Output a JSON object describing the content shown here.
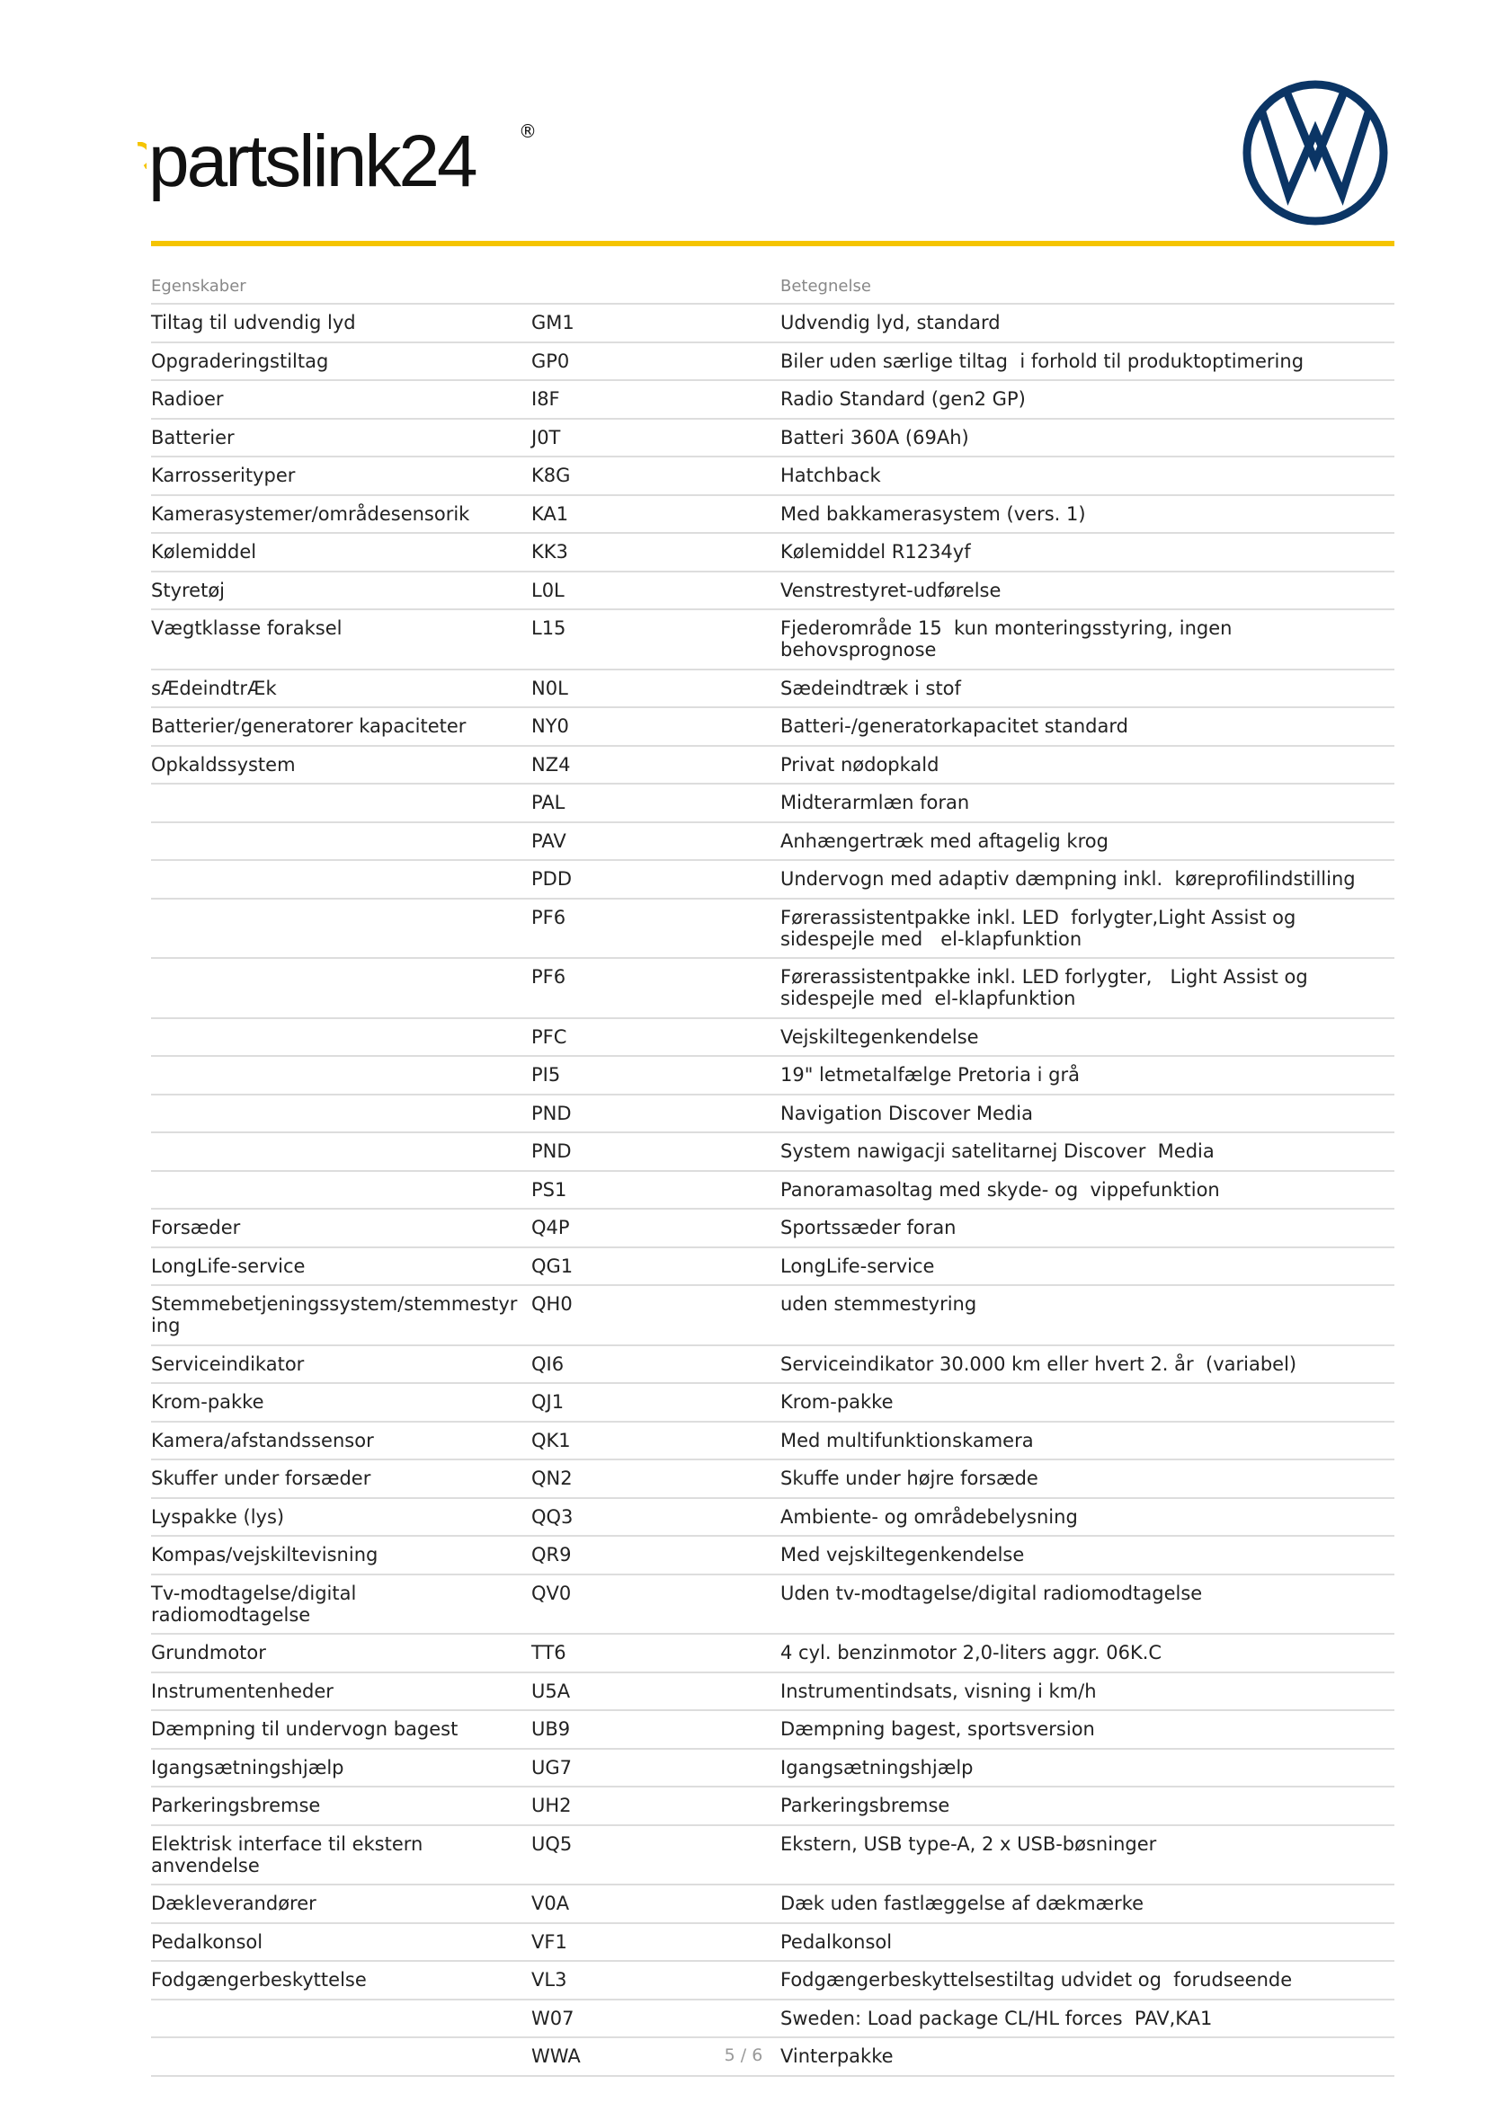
{
  "header": {
    "logo_text": "partslink24",
    "logo_registered": "®",
    "brand_logo": "vw-logo-icon",
    "accent_color": "#f5c400",
    "brand_color": "#0b3565"
  },
  "table": {
    "columns": [
      "Egenskaber",
      "",
      "Betegnelse"
    ],
    "rows": [
      [
        "Tiltag til udvendig lyd",
        "GM1",
        "Udvendig lyd, standard"
      ],
      [
        "Opgraderingstiltag",
        "GP0",
        "Biler uden særlige tiltag  i forhold til produktoptimering"
      ],
      [
        "Radioer",
        "I8F",
        "Radio Standard (gen2 GP)"
      ],
      [
        "Batterier",
        "J0T",
        "Batteri 360A (69Ah)"
      ],
      [
        "Karrosserityper",
        "K8G",
        "Hatchback"
      ],
      [
        "Kamerasystemer/områdesensorik",
        "KA1",
        "Med bakkamerasystem (vers. 1)"
      ],
      [
        "Kølemiddel",
        "KK3",
        "Kølemiddel R1234yf"
      ],
      [
        "Styretøj",
        "L0L",
        "Venstrestyret-udførelse"
      ],
      [
        "Vægtklasse foraksel",
        "L15",
        "Fjederområde 15  kun monteringsstyring, ingen behovsprognose"
      ],
      [
        "sÆdeindtrÆk",
        "N0L",
        "Sædeindtræk i stof"
      ],
      [
        "Batterier/generatorer kapaciteter",
        "NY0",
        "Batteri-/generatorkapacitet standard"
      ],
      [
        "Opkaldssystem",
        "NZ4",
        "Privat nødopkald"
      ],
      [
        "",
        "PAL",
        "Midterarmlæn foran"
      ],
      [
        "",
        "PAV",
        "Anhængertræk med aftagelig krog"
      ],
      [
        "",
        "PDD",
        "Undervogn med adaptiv dæmpning inkl.  køreprofilindstilling"
      ],
      [
        "",
        "PF6",
        "Førerassistentpakke inkl. LED  forlygter,Light Assist og sidespejle med   el-klapfunktion"
      ],
      [
        "",
        "PF6",
        "Førerassistentpakke inkl. LED forlygter,   Light Assist og sidespejle med  el-klapfunktion"
      ],
      [
        "",
        "PFC",
        "Vejskiltegenkendelse"
      ],
      [
        "",
        "PI5",
        "19\" letmetalfælge Pretoria i grå"
      ],
      [
        "",
        "PND",
        "Navigation Discover Media"
      ],
      [
        "",
        "PND",
        "System nawigacji satelitarnej Discover  Media"
      ],
      [
        "",
        "PS1",
        "Panoramasoltag med skyde- og  vippefunktion"
      ],
      [
        "Forsæder",
        "Q4P",
        "Sportssæder foran"
      ],
      [
        "LongLife-service",
        "QG1",
        "LongLife-service"
      ],
      [
        "Stemmebetjeningssystem/stemmestyring",
        "QH0",
        "uden stemmestyring"
      ],
      [
        "Serviceindikator",
        "QI6",
        "Serviceindikator 30.000 km eller hvert 2. år  (variabel)"
      ],
      [
        "Krom-pakke",
        "QJ1",
        "Krom-pakke"
      ],
      [
        "Kamera/afstandssensor",
        "QK1",
        "Med multifunktionskamera"
      ],
      [
        "Skuffer under forsæder",
        "QN2",
        "Skuffe under højre forsæde"
      ],
      [
        "Lyspakke (lys)",
        "QQ3",
        "Ambiente- og områdebelysning"
      ],
      [
        "Kompas/vejskiltevisning",
        "QR9",
        "Med vejskiltegenkendelse"
      ],
      [
        "Tv-modtagelse/digital radiomodtagelse",
        "QV0",
        "Uden tv-modtagelse/digital radiomodtagelse"
      ],
      [
        "Grundmotor",
        "TT6",
        "4 cyl. benzinmotor 2,0-liters aggr. 06K.C"
      ],
      [
        "Instrumentenheder",
        "U5A",
        "Instrumentindsats, visning i km/h"
      ],
      [
        "Dæmpning til undervogn bagest",
        "UB9",
        "Dæmpning bagest, sportsversion"
      ],
      [
        "Igangsætningshjælp",
        "UG7",
        "Igangsætningshjælp"
      ],
      [
        "Parkeringsbremse",
        "UH2",
        "Parkeringsbremse"
      ],
      [
        "Elektrisk interface til ekstern anvendelse",
        "UQ5",
        "Ekstern, USB type-A, 2 x USB-bøsninger"
      ],
      [
        "Dækleverandører",
        "V0A",
        "Dæk uden fastlæggelse af dækmærke"
      ],
      [
        "Pedalkonsol",
        "VF1",
        "Pedalkonsol"
      ],
      [
        "Fodgængerbeskyttelse",
        "VL3",
        "Fodgængerbeskyttelsestiltag udvidet og  forudseende"
      ],
      [
        "",
        "W07",
        "Sweden: Load package CL/HL forces  PAV,KA1"
      ],
      [
        "",
        "WWA",
        "Vinterpakke"
      ]
    ]
  },
  "footer": {
    "page": "5 / 6"
  }
}
